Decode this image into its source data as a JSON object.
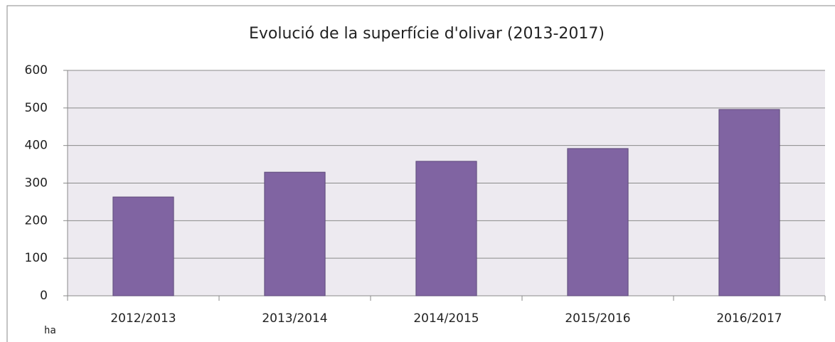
{
  "chart_data": {
    "type": "bar",
    "title": "Evolució de la superfície d'olivar (2013-2017)",
    "annotation": "ha",
    "categories": [
      "2012/2013",
      "2013/2014",
      "2014/2015",
      "2015/2016",
      "2016/2017"
    ],
    "values": [
      263,
      329,
      358,
      392,
      496
    ],
    "color": "#8064a2",
    "ylim": [
      0,
      600
    ],
    "yticks": [
      0,
      100,
      200,
      300,
      400,
      500,
      600
    ],
    "grid": true
  }
}
